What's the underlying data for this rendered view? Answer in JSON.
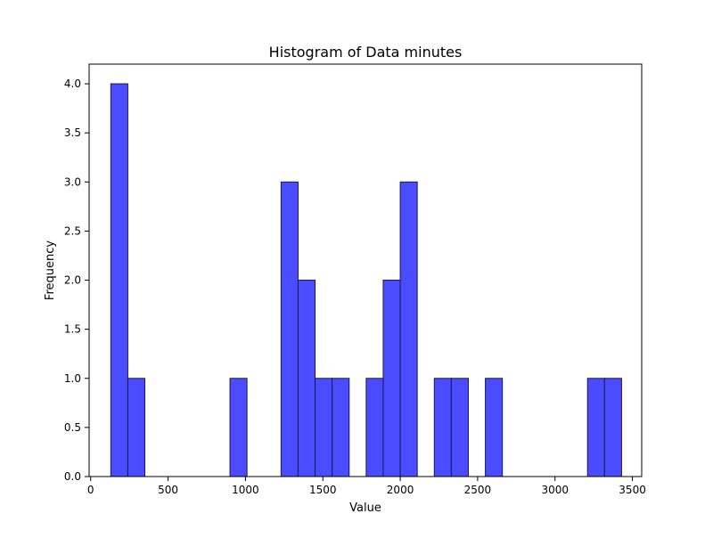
{
  "chart_data": {
    "type": "bar",
    "title": "Histogram of Data minutes",
    "xlabel": "Value",
    "ylabel": "Frequency",
    "xlim": [
      -10,
      3560
    ],
    "ylim": [
      0,
      4.2
    ],
    "bar_color": "#4b4bff",
    "edge_color": "#1a1a4d",
    "x_ticks": [
      {
        "value": 0,
        "label": "0"
      },
      {
        "value": 500,
        "label": "500"
      },
      {
        "value": 1000,
        "label": "1000"
      },
      {
        "value": 1500,
        "label": "1500"
      },
      {
        "value": 2000,
        "label": "2000"
      },
      {
        "value": 2500,
        "label": "2500"
      },
      {
        "value": 3000,
        "label": "3000"
      },
      {
        "value": 3500,
        "label": "3500"
      }
    ],
    "y_ticks": [
      {
        "value": 0.0,
        "label": "0.0"
      },
      {
        "value": 0.5,
        "label": "0.5"
      },
      {
        "value": 1.0,
        "label": "1.0"
      },
      {
        "value": 1.5,
        "label": "1.5"
      },
      {
        "value": 2.0,
        "label": "2.0"
      },
      {
        "value": 2.5,
        "label": "2.5"
      },
      {
        "value": 3.0,
        "label": "3.0"
      },
      {
        "value": 3.5,
        "label": "3.5"
      },
      {
        "value": 4.0,
        "label": "4.0"
      }
    ],
    "bins": [
      {
        "start": 130,
        "end": 240,
        "count": 4
      },
      {
        "start": 240,
        "end": 350,
        "count": 1
      },
      {
        "start": 350,
        "end": 460,
        "count": 0
      },
      {
        "start": 460,
        "end": 570,
        "count": 0
      },
      {
        "start": 570,
        "end": 680,
        "count": 0
      },
      {
        "start": 680,
        "end": 790,
        "count": 0
      },
      {
        "start": 790,
        "end": 900,
        "count": 0
      },
      {
        "start": 900,
        "end": 1010,
        "count": 1
      },
      {
        "start": 1010,
        "end": 1120,
        "count": 0
      },
      {
        "start": 1120,
        "end": 1230,
        "count": 0
      },
      {
        "start": 1230,
        "end": 1340,
        "count": 3
      },
      {
        "start": 1340,
        "end": 1450,
        "count": 2
      },
      {
        "start": 1450,
        "end": 1560,
        "count": 1
      },
      {
        "start": 1560,
        "end": 1670,
        "count": 1
      },
      {
        "start": 1670,
        "end": 1780,
        "count": 0
      },
      {
        "start": 1780,
        "end": 1890,
        "count": 1
      },
      {
        "start": 1890,
        "end": 2000,
        "count": 2
      },
      {
        "start": 2000,
        "end": 2110,
        "count": 3
      },
      {
        "start": 2110,
        "end": 2220,
        "count": 0
      },
      {
        "start": 2220,
        "end": 2330,
        "count": 1
      },
      {
        "start": 2330,
        "end": 2440,
        "count": 1
      },
      {
        "start": 2440,
        "end": 2550,
        "count": 0
      },
      {
        "start": 2550,
        "end": 2660,
        "count": 1
      },
      {
        "start": 2660,
        "end": 2770,
        "count": 0
      },
      {
        "start": 2770,
        "end": 2880,
        "count": 0
      },
      {
        "start": 2880,
        "end": 2990,
        "count": 0
      },
      {
        "start": 2990,
        "end": 3100,
        "count": 0
      },
      {
        "start": 3100,
        "end": 3210,
        "count": 0
      },
      {
        "start": 3210,
        "end": 3320,
        "count": 1
      },
      {
        "start": 3320,
        "end": 3430,
        "count": 1
      }
    ]
  }
}
